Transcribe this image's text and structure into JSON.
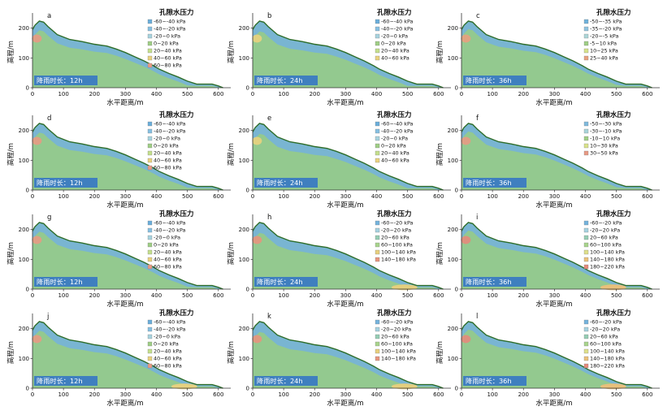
{
  "chart_data": [
    {
      "type": "heatmap",
      "label": "a",
      "xlabel": "水平距离/m",
      "ylabel": "高程/m",
      "xlim": [
        0,
        640
      ],
      "ylim": [
        0,
        240
      ],
      "x_ticks": [
        "0",
        "100",
        "200",
        "300",
        "400",
        "500",
        "600"
      ],
      "y_ticks": [
        "0",
        "100",
        "200"
      ],
      "rain_label": "降雨时长：12h",
      "legend_title": "孔隙水压力",
      "legend": [
        "-60~-40 kPa",
        "-40~-20 kPa",
        "-20~0 kPa",
        "0~20 kPa",
        "20~40 kPa",
        "40~60 kPa",
        "60~80 kPa"
      ],
      "legend_colors": [
        "#6aaedb",
        "#86c0e2",
        "#a7d3df",
        "#9fce85",
        "#c4df8c",
        "#ead27e",
        "#e89a84"
      ]
    },
    {
      "type": "heatmap",
      "label": "b",
      "xlabel": "水平距离/m",
      "ylabel": "高程/m",
      "xlim": [
        0,
        640
      ],
      "ylim": [
        0,
        240
      ],
      "x_ticks": [
        "0",
        "100",
        "200",
        "300",
        "400",
        "500",
        "600"
      ],
      "y_ticks": [
        "0",
        "100",
        "200"
      ],
      "rain_label": "降雨时长：24h",
      "legend_title": "孔隙水压力",
      "legend": [
        "-60~-40 kPa",
        "-40~-20 kPa",
        "-20~0 kPa",
        "0~20 kPa",
        "20~40 kPa",
        "40~60 kPa"
      ],
      "legend_colors": [
        "#6aaedb",
        "#86c0e2",
        "#a7d3df",
        "#9fce85",
        "#c4df8c",
        "#ead27e"
      ]
    },
    {
      "type": "heatmap",
      "label": "c",
      "xlabel": "水平距离/m",
      "ylabel": "高程/m",
      "xlim": [
        0,
        640
      ],
      "ylim": [
        0,
        240
      ],
      "x_ticks": [
        "0",
        "100",
        "200",
        "300",
        "400",
        "500",
        "600"
      ],
      "y_ticks": [
        "0",
        "100",
        "200"
      ],
      "rain_label": "降雨时长：36h",
      "legend_title": "孔隙水压力",
      "legend": [
        "-50~-35 kPa",
        "-35~-20 kPa",
        "-20~-5 kPa",
        "-5~10 kPa",
        "10~25 kPa",
        "25~40 kPa"
      ],
      "legend_colors": [
        "#6fb2dc",
        "#8fc4e0",
        "#acd6d8",
        "#9fce85",
        "#d6e28a",
        "#e9a07f"
      ]
    },
    {
      "type": "heatmap",
      "label": "d",
      "xlabel": "水平距离/m",
      "ylabel": "高程/m",
      "xlim": [
        0,
        640
      ],
      "ylim": [
        0,
        240
      ],
      "x_ticks": [
        "0",
        "100",
        "200",
        "300",
        "400",
        "500",
        "600"
      ],
      "y_ticks": [
        "0",
        "100",
        "200"
      ],
      "rain_label": "降雨时长：12h",
      "legend_title": "孔隙水压力",
      "legend": [
        "-60~-40 kPa",
        "-40~-20 kPa",
        "-20~0 kPa",
        "0~20 kPa",
        "20~40 kPa",
        "40~60 kPa",
        "60~80 kPa"
      ],
      "legend_colors": [
        "#6aaedb",
        "#86c0e2",
        "#a7d3df",
        "#9fce85",
        "#c4df8c",
        "#ead27e",
        "#e89a84"
      ]
    },
    {
      "type": "heatmap",
      "label": "e",
      "xlabel": "水平距离/m",
      "ylabel": "高程/m",
      "xlim": [
        0,
        640
      ],
      "ylim": [
        0,
        240
      ],
      "x_ticks": [
        "0",
        "100",
        "200",
        "300",
        "400",
        "500",
        "600"
      ],
      "y_ticks": [
        "0",
        "100",
        "200"
      ],
      "rain_label": "降雨时长：24h",
      "legend_title": "孔隙水压力",
      "legend": [
        "-60~-40 kPa",
        "-40~-20 kPa",
        "-20~0 kPa",
        "0~20 kPa",
        "20~40 kPa",
        "40~60 kPa"
      ],
      "legend_colors": [
        "#6aaedb",
        "#86c0e2",
        "#a7d3df",
        "#9fce85",
        "#c4df8c",
        "#ead27e"
      ]
    },
    {
      "type": "heatmap",
      "label": "f",
      "xlabel": "水平距离/m",
      "ylabel": "高程/m",
      "xlim": [
        0,
        640
      ],
      "ylim": [
        0,
        240
      ],
      "x_ticks": [
        "0",
        "100",
        "200",
        "300",
        "400",
        "500",
        "600"
      ],
      "y_ticks": [
        "0",
        "100",
        "200"
      ],
      "rain_label": "降雨时长：36h",
      "legend_title": "孔隙水压力",
      "legend": [
        "-50~-30 kPa",
        "-30~-10 kPa",
        "-10~10 kPa",
        "10~30 kPa",
        "30~50 kPa"
      ],
      "legend_colors": [
        "#7fbade",
        "#a9d4da",
        "#9fce85",
        "#d9e38a",
        "#e89a84"
      ]
    },
    {
      "type": "heatmap",
      "label": "g",
      "xlabel": "水平距离/m",
      "ylabel": "高程/m",
      "xlim": [
        0,
        640
      ],
      "ylim": [
        0,
        240
      ],
      "x_ticks": [
        "0",
        "100",
        "200",
        "300",
        "400",
        "500",
        "600"
      ],
      "y_ticks": [
        "0",
        "100",
        "200"
      ],
      "rain_label": "降雨时长：12h",
      "legend_title": "孔隙水压力",
      "legend": [
        "-60~-40 kPa",
        "-40~-20 kPa",
        "-20~0 kPa",
        "0~20 kPa",
        "20~40 kPa",
        "40~60 kPa",
        "60~80 kPa"
      ],
      "legend_colors": [
        "#6aaedb",
        "#86c0e2",
        "#a7d3df",
        "#9fce85",
        "#c4df8c",
        "#ead27e",
        "#e89a84"
      ]
    },
    {
      "type": "heatmap",
      "label": "h",
      "xlabel": "水平距离/m",
      "ylabel": "高程/m",
      "xlim": [
        0,
        640
      ],
      "ylim": [
        0,
        240
      ],
      "x_ticks": [
        "0",
        "100",
        "200",
        "300",
        "400",
        "500",
        "600"
      ],
      "y_ticks": [
        "0",
        "100",
        "200"
      ],
      "rain_label": "降雨时长：24h",
      "legend_title": "孔隙水压力",
      "legend": [
        "-60~-20 kPa",
        "-20~20 kPa",
        "20~60 kPa",
        "60~100 kPa",
        "100~140 kPa",
        "140~180 kPa"
      ],
      "legend_colors": [
        "#74b3dd",
        "#a6d2e0",
        "#95cdb4",
        "#a8d48c",
        "#e8d07c",
        "#e8947e"
      ]
    },
    {
      "type": "heatmap",
      "label": "i",
      "xlabel": "水平距离/m",
      "ylabel": "高程/m",
      "xlim": [
        0,
        640
      ],
      "ylim": [
        0,
        240
      ],
      "x_ticks": [
        "0",
        "100",
        "200",
        "300",
        "400",
        "500",
        "600"
      ],
      "y_ticks": [
        "0",
        "100",
        "200"
      ],
      "rain_label": "降雨时长：36h",
      "legend_title": "孔隙水压力",
      "legend": [
        "-60~-20 kPa",
        "-20~20 kPa",
        "20~60 kPa",
        "60~100 kPa",
        "100~140 kPa",
        "140~180 kPa",
        "180~220 kPa"
      ],
      "legend_colors": [
        "#74b3dd",
        "#a6d2e0",
        "#95cdb4",
        "#a8d48c",
        "#dfe08a",
        "#ecc07a",
        "#e58a7c"
      ]
    },
    {
      "type": "heatmap",
      "label": "j",
      "xlabel": "水平距离/m",
      "ylabel": "高程/m",
      "xlim": [
        0,
        640
      ],
      "ylim": [
        0,
        240
      ],
      "x_ticks": [
        "0",
        "100",
        "200",
        "300",
        "400",
        "500",
        "600"
      ],
      "y_ticks": [
        "0",
        "100",
        "200"
      ],
      "rain_label": "降雨时长：12h",
      "legend_title": "孔隙水压力",
      "legend": [
        "-60~-40 kPa",
        "-40~-20 kPa",
        "-20~0 kPa",
        "0~20 kPa",
        "20~40 kPa",
        "40~60 kPa",
        "60~80 kPa"
      ],
      "legend_colors": [
        "#6aaedb",
        "#86c0e2",
        "#a7d3df",
        "#9fce85",
        "#c4df8c",
        "#ead27e",
        "#e89a84"
      ]
    },
    {
      "type": "heatmap",
      "label": "k",
      "xlabel": "水平距离/m",
      "ylabel": "高程/m",
      "xlim": [
        0,
        640
      ],
      "ylim": [
        0,
        240
      ],
      "x_ticks": [
        "0",
        "100",
        "200",
        "300",
        "400",
        "500",
        "600"
      ],
      "y_ticks": [
        "0",
        "100",
        "200"
      ],
      "rain_label": "降雨时长：24h",
      "legend_title": "孔隙水压力",
      "legend": [
        "-60~-20 kPa",
        "-20~20 kPa",
        "20~60 kPa",
        "60~100 kPa",
        "100~140 kPa",
        "140~180 kPa"
      ],
      "legend_colors": [
        "#74b3dd",
        "#a6d2e0",
        "#95cdb4",
        "#a8d48c",
        "#e8d07c",
        "#e8947e"
      ]
    },
    {
      "type": "heatmap",
      "label": "l",
      "xlabel": "水平距离/m",
      "ylabel": "高程/m",
      "xlim": [
        0,
        640
      ],
      "ylim": [
        0,
        240
      ],
      "x_ticks": [
        "0",
        "100",
        "200",
        "300",
        "400",
        "500",
        "600"
      ],
      "y_ticks": [
        "0",
        "100",
        "200"
      ],
      "rain_label": "降雨时长：36h",
      "legend_title": "孔隙水压力",
      "legend": [
        "-60~-20 kPa",
        "-20~20 kPa",
        "20~60 kPa",
        "60~100 kPa",
        "100~140 kPa",
        "140~180 kPa",
        "180~220 kPa"
      ],
      "legend_colors": [
        "#74b3dd",
        "#a6d2e0",
        "#95cdb4",
        "#a8d48c",
        "#dfe08a",
        "#ecc07a",
        "#e58a7c"
      ]
    }
  ],
  "colors": {
    "surface_line": "#2e6d2a",
    "deep_zone": "#93c98f",
    "unsaturated_zone": "#74b2de",
    "rain_box": "#3f7fbf"
  }
}
